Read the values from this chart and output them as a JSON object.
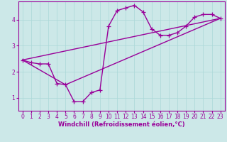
{
  "xlabel": "Windchill (Refroidissement éolien,°C)",
  "background_color": "#cce8e8",
  "line_color": "#990099",
  "xlim": [
    -0.5,
    23.5
  ],
  "ylim": [
    0.5,
    4.7
  ],
  "xticks": [
    0,
    1,
    2,
    3,
    4,
    5,
    6,
    7,
    8,
    9,
    10,
    11,
    12,
    13,
    14,
    15,
    16,
    17,
    18,
    19,
    20,
    21,
    22,
    23
  ],
  "yticks": [
    1,
    2,
    3,
    4
  ],
  "grid_color": "#aad8d8",
  "curve_x": [
    0,
    1,
    2,
    3,
    4,
    5,
    6,
    7,
    8,
    9,
    10,
    11,
    12,
    13,
    14,
    15,
    16,
    17,
    18,
    19,
    20,
    21,
    22,
    23
  ],
  "curve_y": [
    2.45,
    2.35,
    2.3,
    2.3,
    1.55,
    1.5,
    0.85,
    0.85,
    1.2,
    1.3,
    3.75,
    4.35,
    4.45,
    4.55,
    4.3,
    3.65,
    3.4,
    3.4,
    3.5,
    3.75,
    4.1,
    4.2,
    4.2,
    4.05
  ],
  "line1_x": [
    0,
    23
  ],
  "line1_y": [
    2.45,
    4.05
  ],
  "line2_x": [
    0,
    5,
    23
  ],
  "line2_y": [
    2.45,
    1.5,
    4.05
  ],
  "marker_size": 4,
  "line_width": 1.0,
  "xlabel_fontsize": 6,
  "tick_fontsize": 5.5
}
